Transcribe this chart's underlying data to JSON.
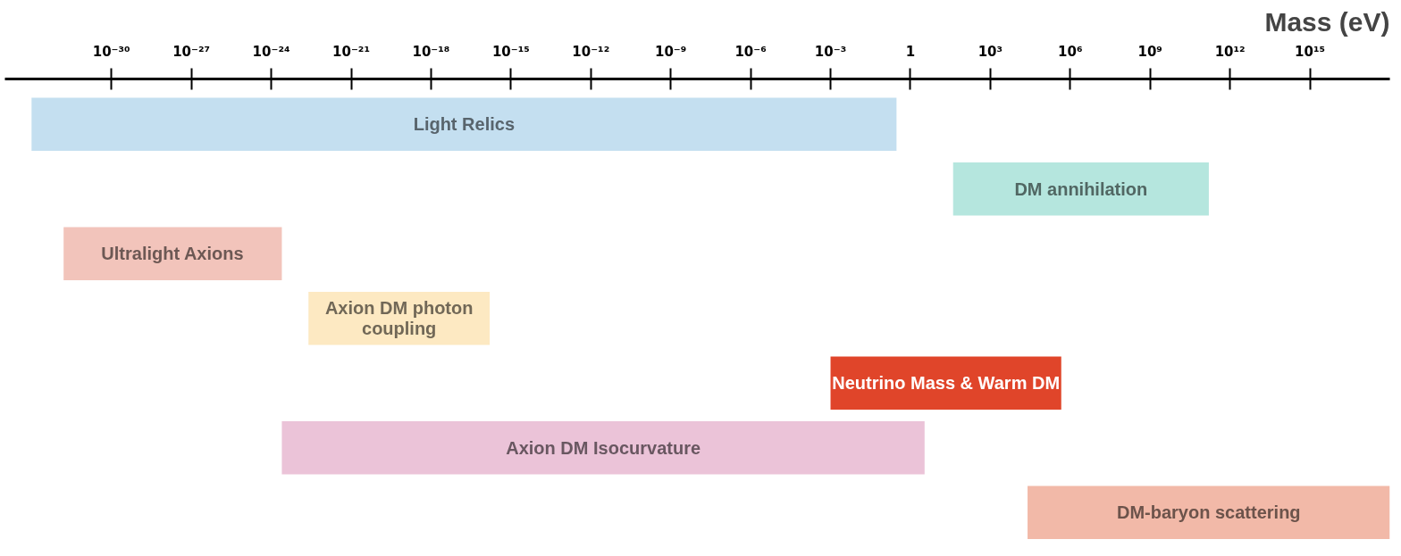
{
  "chart_data": {
    "type": "bar",
    "orientation": "horizontal",
    "log": "x",
    "xlabel": "Mass (eV)",
    "categories": [
      "Light Relics",
      "DM annihilation",
      "Ultralight Axions",
      "Axion DM photon coupling",
      "Neutrino Mass & Warm DM",
      "Axion DM Isocurvature",
      "DM-baryon scattering"
    ],
    "values": [
      0.3,
      160000000000.0,
      2.5e-24,
      1.6e-16,
      460000.0,
      3.4,
      1e+18
    ],
    "base": [
      1e-33,
      40,
      1.6e-32,
      2.5e-23,
      0.001,
      2.5e-24,
      25000.0
    ],
    "colors": [
      "#c4dff0",
      "#b5e6de",
      "#f2c4bb",
      "#fde9c2",
      "#e0452a",
      "#ebc3d8",
      "#f2b9a8"
    ],
    "xlim": [
      1e-34,
      1e+18
    ],
    "xticks": [
      {
        "value": 1e-30,
        "label": "10⁻³⁰"
      },
      {
        "value": 1e-27,
        "label": "10⁻²⁷"
      },
      {
        "value": 1e-24,
        "label": "10⁻²⁴"
      },
      {
        "value": 1e-21,
        "label": "10⁻²¹"
      },
      {
        "value": 1e-18,
        "label": "10⁻¹⁸"
      },
      {
        "value": 1e-15,
        "label": "10⁻¹⁵"
      },
      {
        "value": 1e-12,
        "label": "10⁻¹²"
      },
      {
        "value": 1e-09,
        "label": "10⁻⁹"
      },
      {
        "value": 1e-06,
        "label": "10⁻⁶"
      },
      {
        "value": 0.001,
        "label": "10⁻³"
      },
      {
        "value": 1,
        "label": "1"
      },
      {
        "value": 1000.0,
        "label": "10³"
      },
      {
        "value": 1000000.0,
        "label": "10⁶"
      },
      {
        "value": 1000000000.0,
        "label": "10⁹"
      },
      {
        "value": 1000000000000.0,
        "label": "10¹²"
      },
      {
        "value": 1000000000000000.0,
        "label": "10¹⁵"
      }
    ],
    "grid": false
  }
}
